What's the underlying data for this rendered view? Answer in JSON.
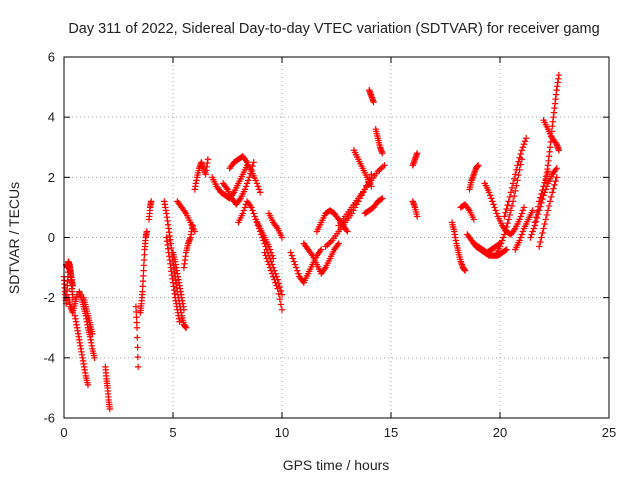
{
  "chart_data": {
    "type": "scatter",
    "title": "Day 311 of 2022, Sidereal Day-to-day VTEC variation (SDTVAR) for receiver gamg",
    "xlabel": "GPS time / hours",
    "ylabel": "SDTVAR / TECUs",
    "xlim": [
      0,
      25
    ],
    "ylim": [
      -6,
      6
    ],
    "xticks": [
      "0",
      "5",
      "10",
      "15",
      "20",
      "25"
    ],
    "yticks": [
      "-6",
      "-4",
      "-2",
      "0",
      "2",
      "4",
      "6"
    ],
    "grid": true,
    "marker": "plus",
    "color": "#ff0000",
    "series": [
      {
        "name": "s01",
        "x": [
          0.0,
          0.05,
          0.1,
          0.15,
          0.2,
          0.25,
          0.3,
          0.35,
          0.4
        ],
        "y": [
          -1.3,
          -1.8,
          -2.2,
          -1.6,
          -1.0,
          -0.9,
          -1.2,
          -1.6,
          -2.0
        ]
      },
      {
        "name": "s02",
        "x": [
          0.1,
          0.15,
          0.2,
          0.25,
          0.3,
          0.35,
          0.4
        ],
        "y": [
          -0.9,
          -1.0,
          -0.8,
          -0.9,
          -1.1,
          -1.4,
          -1.6
        ]
      },
      {
        "name": "s03",
        "x": [
          0.2,
          0.3,
          0.4,
          0.5,
          0.6
        ],
        "y": [
          -2.0,
          -2.3,
          -2.5,
          -2.2,
          -1.9
        ]
      },
      {
        "name": "s04",
        "x": [
          0.5,
          0.6,
          0.7,
          0.8,
          0.9,
          1.0,
          1.1
        ],
        "y": [
          -2.6,
          -3.0,
          -3.4,
          -3.8,
          -4.2,
          -4.6,
          -4.9
        ]
      },
      {
        "name": "s05",
        "x": [
          0.7,
          0.8,
          0.9,
          1.0,
          1.1,
          1.2,
          1.3,
          1.4
        ],
        "y": [
          -1.8,
          -2.0,
          -2.3,
          -2.6,
          -3.0,
          -3.3,
          -3.7,
          -4.0
        ]
      },
      {
        "name": "s06",
        "x": [
          0.9,
          1.0,
          1.1,
          1.2,
          1.3
        ],
        "y": [
          -2.0,
          -2.3,
          -2.6,
          -2.9,
          -3.2
        ]
      },
      {
        "name": "s07",
        "x": [
          1.9,
          1.95,
          2.0,
          2.05,
          2.1
        ],
        "y": [
          -4.3,
          -4.7,
          -5.0,
          -5.4,
          -5.7
        ]
      },
      {
        "name": "s08",
        "x": [
          3.3,
          3.35,
          3.4
        ],
        "y": [
          -2.3,
          -3.0,
          -4.3
        ]
      },
      {
        "name": "s09",
        "x": [
          3.5,
          3.55,
          3.6,
          3.65,
          3.7,
          3.75,
          3.8
        ],
        "y": [
          -2.5,
          -2.2,
          -1.8,
          -1.1,
          -0.4,
          0.0,
          0.2
        ]
      },
      {
        "name": "s10",
        "x": [
          3.9,
          3.95,
          4.0
        ],
        "y": [
          0.6,
          1.0,
          1.2
        ]
      },
      {
        "name": "s11",
        "x": [
          4.6,
          4.7,
          4.8,
          4.9,
          5.0,
          5.1,
          5.2,
          5.3,
          5.4,
          5.5,
          5.6
        ],
        "y": [
          1.2,
          0.8,
          0.3,
          -0.2,
          -0.8,
          -1.3,
          -1.8,
          -2.2,
          -2.6,
          -2.9,
          -3.0
        ]
      },
      {
        "name": "s12",
        "x": [
          4.7,
          4.8,
          4.9,
          5.0,
          5.1,
          5.2,
          5.3
        ],
        "y": [
          0.0,
          -0.5,
          -1.0,
          -1.5,
          -2.0,
          -2.4,
          -2.8
        ]
      },
      {
        "name": "s13",
        "x": [
          5.0,
          5.1,
          5.2,
          5.3,
          5.4,
          5.5
        ],
        "y": [
          -0.5,
          -0.8,
          -1.2,
          -1.6,
          -2.0,
          -2.4
        ]
      },
      {
        "name": "s14",
        "x": [
          5.2,
          5.4,
          5.6,
          5.8,
          6.0
        ],
        "y": [
          1.2,
          1.0,
          0.8,
          0.5,
          0.2
        ]
      },
      {
        "name": "s15",
        "x": [
          5.5,
          5.6,
          5.7,
          5.8,
          5.9
        ],
        "y": [
          -1.0,
          -0.5,
          -0.2,
          0.0,
          0.4
        ]
      },
      {
        "name": "s16",
        "x": [
          6.0,
          6.1,
          6.2,
          6.3,
          6.4,
          6.5,
          6.6
        ],
        "y": [
          1.6,
          2.0,
          2.3,
          2.5,
          2.3,
          2.1,
          2.6
        ]
      },
      {
        "name": "s17",
        "x": [
          6.8,
          7.0,
          7.2,
          7.4,
          7.6,
          7.8,
          8.0,
          8.2,
          8.4
        ],
        "y": [
          2.0,
          1.7,
          1.5,
          1.4,
          1.3,
          1.5,
          1.8,
          2.1,
          2.4
        ]
      },
      {
        "name": "s18",
        "x": [
          7.3,
          7.5,
          7.7,
          7.9,
          8.1,
          8.3,
          8.5,
          8.7
        ],
        "y": [
          1.8,
          1.6,
          1.3,
          1.1,
          1.3,
          1.6,
          2.0,
          2.5
        ]
      },
      {
        "name": "s19",
        "x": [
          7.6,
          7.8,
          8.0,
          8.2,
          8.4,
          8.6,
          8.8,
          9.0
        ],
        "y": [
          2.3,
          2.5,
          2.6,
          2.7,
          2.5,
          2.2,
          1.9,
          1.5
        ]
      },
      {
        "name": "s20",
        "x": [
          8.0,
          8.2,
          8.4,
          8.6,
          8.8,
          9.0,
          9.2,
          9.4,
          9.6
        ],
        "y": [
          0.5,
          0.8,
          1.2,
          1.0,
          0.6,
          0.3,
          0.0,
          -0.3,
          -0.7
        ]
      },
      {
        "name": "s21",
        "x": [
          8.8,
          9.0,
          9.2,
          9.4,
          9.6,
          9.8,
          10.0
        ],
        "y": [
          0.6,
          0.2,
          -0.2,
          -0.6,
          -1.0,
          -1.4,
          -1.9
        ]
      },
      {
        "name": "s22",
        "x": [
          9.2,
          9.4,
          9.6,
          9.8,
          10.0
        ],
        "y": [
          -0.5,
          -0.9,
          -1.3,
          -1.7,
          -2.4
        ]
      },
      {
        "name": "s23",
        "x": [
          9.4,
          9.6,
          9.8,
          10.0
        ],
        "y": [
          0.8,
          0.5,
          0.3,
          0.0
        ]
      },
      {
        "name": "s24",
        "x": [
          10.4,
          10.6,
          10.8,
          11.0,
          11.2,
          11.4,
          11.6,
          11.8
        ],
        "y": [
          -0.5,
          -0.9,
          -1.3,
          -1.5,
          -1.2,
          -0.9,
          -0.6,
          -0.4
        ]
      },
      {
        "name": "s25",
        "x": [
          11.0,
          11.2,
          11.4,
          11.6,
          11.8,
          12.0,
          12.2,
          12.4,
          12.6
        ],
        "y": [
          -0.2,
          -0.4,
          -0.6,
          -0.9,
          -1.2,
          -1.0,
          -0.7,
          -0.4,
          -0.2
        ]
      },
      {
        "name": "s26",
        "x": [
          11.6,
          11.8,
          12.0,
          12.2,
          12.4,
          12.6,
          12.8,
          13.0
        ],
        "y": [
          0.2,
          0.5,
          0.8,
          0.9,
          0.8,
          0.6,
          0.4,
          0.2
        ]
      },
      {
        "name": "s27",
        "x": [
          12.0,
          12.3,
          12.6,
          12.9,
          13.2,
          13.5,
          13.8,
          14.1
        ],
        "y": [
          -0.3,
          -0.1,
          0.2,
          0.5,
          0.8,
          1.2,
          1.6,
          2.1
        ]
      },
      {
        "name": "s28",
        "x": [
          12.6,
          12.9,
          13.2,
          13.5,
          13.8,
          14.1,
          14.4,
          14.7
        ],
        "y": [
          0.4,
          0.7,
          1.0,
          1.3,
          1.6,
          1.9,
          2.2,
          2.4
        ]
      },
      {
        "name": "s29",
        "x": [
          13.3,
          13.5,
          13.7,
          13.9,
          14.1
        ],
        "y": [
          2.9,
          2.6,
          2.3,
          2.0,
          1.7
        ]
      },
      {
        "name": "s30",
        "x": [
          13.8,
          14.0,
          14.2,
          14.4,
          14.6
        ],
        "y": [
          0.8,
          0.9,
          1.0,
          1.2,
          1.3
        ]
      },
      {
        "name": "s31",
        "x": [
          14.0,
          14.1,
          14.2
        ],
        "y": [
          4.9,
          4.7,
          4.5
        ]
      },
      {
        "name": "s32",
        "x": [
          14.3,
          14.4,
          14.5,
          14.6
        ],
        "y": [
          3.6,
          3.3,
          3.0,
          2.8
        ]
      },
      {
        "name": "s33",
        "x": [
          16.0,
          16.1,
          16.2
        ],
        "y": [
          2.4,
          2.6,
          2.8
        ]
      },
      {
        "name": "s34",
        "x": [
          16.0,
          16.1,
          16.2
        ],
        "y": [
          1.2,
          1.0,
          0.7
        ]
      },
      {
        "name": "s35",
        "x": [
          17.8,
          17.9,
          18.0,
          18.1,
          18.2,
          18.3,
          18.4
        ],
        "y": [
          0.5,
          0.2,
          -0.2,
          -0.5,
          -0.8,
          -1.0,
          -1.1
        ]
      },
      {
        "name": "s36",
        "x": [
          18.2,
          18.4,
          18.6,
          18.8
        ],
        "y": [
          1.0,
          1.1,
          0.9,
          0.6
        ]
      },
      {
        "name": "s37",
        "x": [
          18.5,
          18.7,
          18.9,
          19.1,
          19.3,
          19.5,
          19.7,
          19.9,
          20.1,
          20.3
        ],
        "y": [
          0.1,
          -0.1,
          -0.3,
          -0.4,
          -0.5,
          -0.6,
          -0.6,
          -0.6,
          -0.5,
          -0.4
        ]
      },
      {
        "name": "s38",
        "x": [
          18.8,
          19.0,
          19.2,
          19.4,
          19.6,
          19.8,
          20.0
        ],
        "y": [
          -0.2,
          -0.3,
          -0.4,
          -0.5,
          -0.4,
          -0.3,
          -0.2
        ]
      },
      {
        "name": "s39",
        "x": [
          18.6,
          18.7,
          18.8,
          18.9,
          19.0
        ],
        "y": [
          1.6,
          1.9,
          2.1,
          2.3,
          2.4
        ]
      },
      {
        "name": "s40",
        "x": [
          19.3,
          19.5,
          19.7,
          19.9,
          20.1,
          20.3,
          20.5,
          20.7,
          20.9,
          21.1
        ],
        "y": [
          1.8,
          1.5,
          1.1,
          0.7,
          0.4,
          0.2,
          0.1,
          0.3,
          0.6,
          1.0
        ]
      },
      {
        "name": "s41",
        "x": [
          19.8,
          20.0,
          20.2,
          20.4,
          20.6,
          20.8,
          21.0
        ],
        "y": [
          -0.6,
          -0.3,
          0.1,
          0.6,
          1.2,
          1.9,
          2.6
        ]
      },
      {
        "name": "s42",
        "x": [
          20.2,
          20.4,
          20.6,
          20.8,
          21.0,
          21.2
        ],
        "y": [
          0.7,
          1.2,
          1.8,
          2.4,
          2.9,
          3.3
        ]
      },
      {
        "name": "s43",
        "x": [
          20.7,
          20.9,
          21.1,
          21.3,
          21.5
        ],
        "y": [
          -0.4,
          -0.1,
          0.3,
          0.6,
          0.9
        ]
      },
      {
        "name": "s44",
        "x": [
          21.4,
          21.6,
          21.8,
          22.0,
          22.2,
          22.4,
          22.6
        ],
        "y": [
          0.0,
          0.4,
          0.9,
          1.4,
          1.8,
          2.1,
          2.3
        ]
      },
      {
        "name": "s45",
        "x": [
          21.8,
          22.0,
          22.2,
          22.4,
          22.6
        ],
        "y": [
          -0.3,
          0.3,
          0.9,
          1.5,
          2.0
        ]
      },
      {
        "name": "s46",
        "x": [
          21.6,
          21.8,
          22.0,
          22.2
        ],
        "y": [
          0.5,
          1.2,
          1.7,
          2.2
        ]
      },
      {
        "name": "s47",
        "x": [
          22.1,
          22.2,
          22.3,
          22.4,
          22.5,
          22.6,
          22.7
        ],
        "y": [
          1.9,
          2.4,
          3.0,
          3.7,
          4.3,
          4.9,
          5.4
        ]
      },
      {
        "name": "s48",
        "x": [
          22.0,
          22.2,
          22.4,
          22.6,
          22.7
        ],
        "y": [
          3.9,
          3.6,
          3.3,
          3.1,
          2.9
        ]
      }
    ]
  }
}
